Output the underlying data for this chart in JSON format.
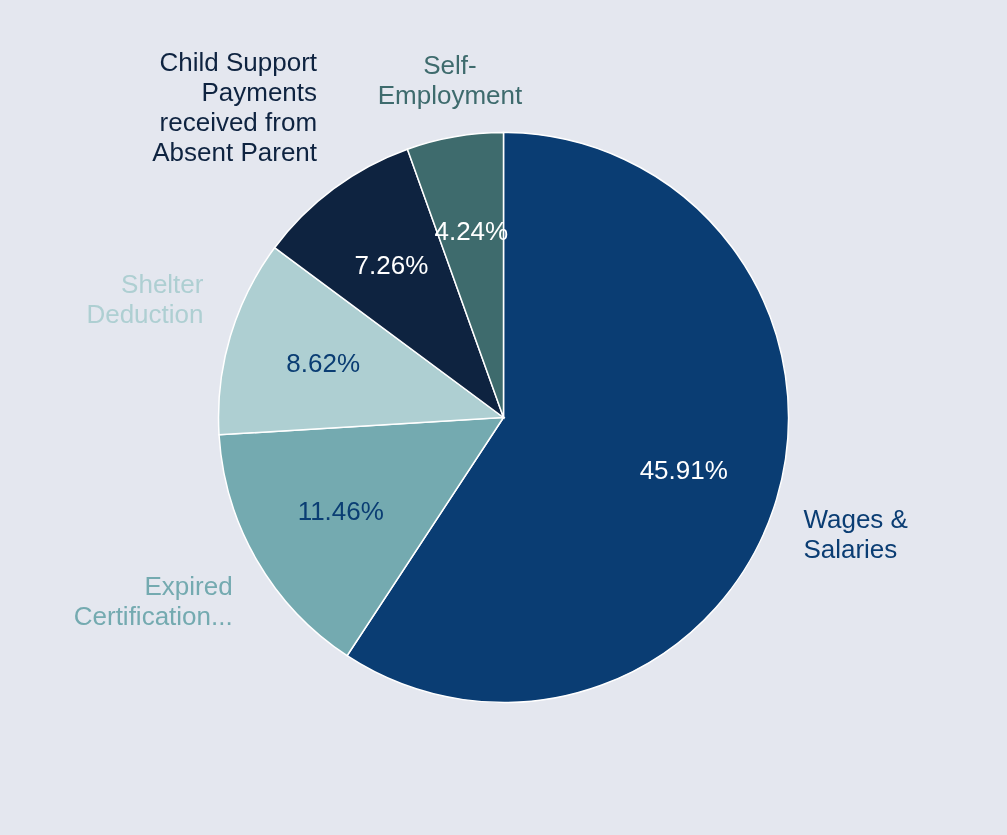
{
  "chart_data": {
    "type": "pie",
    "categories": [
      "Wages & Salaries",
      "Expired Certification...",
      "Shelter Deduction",
      "Child Support Payments received from Absent Parent",
      "Self-Employment"
    ],
    "values": [
      45.91,
      11.46,
      8.62,
      7.26,
      4.24
    ],
    "colors": [
      "#0a3d73",
      "#74aab0",
      "#aecfd2",
      "#0e2340",
      "#3e6b6d"
    ],
    "value_labels": [
      "45.91%",
      "11.46%",
      "8.62%",
      "7.26%",
      "4.24%"
    ]
  }
}
